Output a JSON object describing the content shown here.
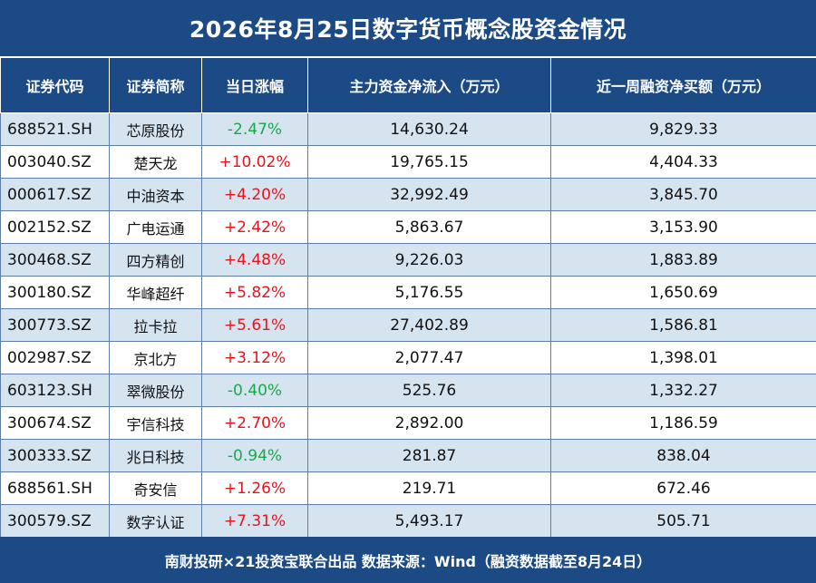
{
  "title": "2026年8月25日数字货币概念股资金情况",
  "headers": [
    "证券代码",
    "证券简称",
    "当日涨幅",
    "主力资金净流入（万元）",
    "近一周融资净买额（万元）"
  ],
  "colors": {
    "header_bg": "#1c4a85",
    "row_alt": "#d6e4f0",
    "up": "#e8131c",
    "down": "#18a84a"
  },
  "rows": [
    {
      "code": "688521.SH",
      "name": "芯原股份",
      "change": "-2.47%",
      "dir": "down",
      "inflow": "14,630.24",
      "margin": "9,829.33"
    },
    {
      "code": "003040.SZ",
      "name": "楚天龙",
      "change": "+10.02%",
      "dir": "up",
      "inflow": "19,765.15",
      "margin": "4,404.33"
    },
    {
      "code": "000617.SZ",
      "name": "中油资本",
      "change": "+4.20%",
      "dir": "up",
      "inflow": "32,992.49",
      "margin": "3,845.70"
    },
    {
      "code": "002152.SZ",
      "name": "广电运通",
      "change": "+2.42%",
      "dir": "up",
      "inflow": "5,863.67",
      "margin": "3,153.90"
    },
    {
      "code": "300468.SZ",
      "name": "四方精创",
      "change": "+4.48%",
      "dir": "up",
      "inflow": "9,226.03",
      "margin": "1,883.89"
    },
    {
      "code": "300180.SZ",
      "name": "华峰超纤",
      "change": "+5.82%",
      "dir": "up",
      "inflow": "5,176.55",
      "margin": "1,650.69"
    },
    {
      "code": "300773.SZ",
      "name": "拉卡拉",
      "change": "+5.61%",
      "dir": "up",
      "inflow": "27,402.89",
      "margin": "1,586.81"
    },
    {
      "code": "002987.SZ",
      "name": "京北方",
      "change": "+3.12%",
      "dir": "up",
      "inflow": "2,077.47",
      "margin": "1,398.01"
    },
    {
      "code": "603123.SH",
      "name": "翠微股份",
      "change": "-0.40%",
      "dir": "down",
      "inflow": "525.76",
      "margin": "1,332.27"
    },
    {
      "code": "300674.SZ",
      "name": "宇信科技",
      "change": "+2.70%",
      "dir": "up",
      "inflow": "2,892.00",
      "margin": "1,186.59"
    },
    {
      "code": "300333.SZ",
      "name": "兆日科技",
      "change": "-0.94%",
      "dir": "down",
      "inflow": "281.87",
      "margin": "838.04"
    },
    {
      "code": "688561.SH",
      "name": "奇安信",
      "change": "+1.26%",
      "dir": "up",
      "inflow": "219.71",
      "margin": "672.46"
    },
    {
      "code": "300579.SZ",
      "name": "数字认证",
      "change": "+7.31%",
      "dir": "up",
      "inflow": "5,493.17",
      "margin": "505.71"
    }
  ],
  "footer": "南财投研×21投资宝联合出品 数据来源：Wind（融资数据截至8月24日）"
}
